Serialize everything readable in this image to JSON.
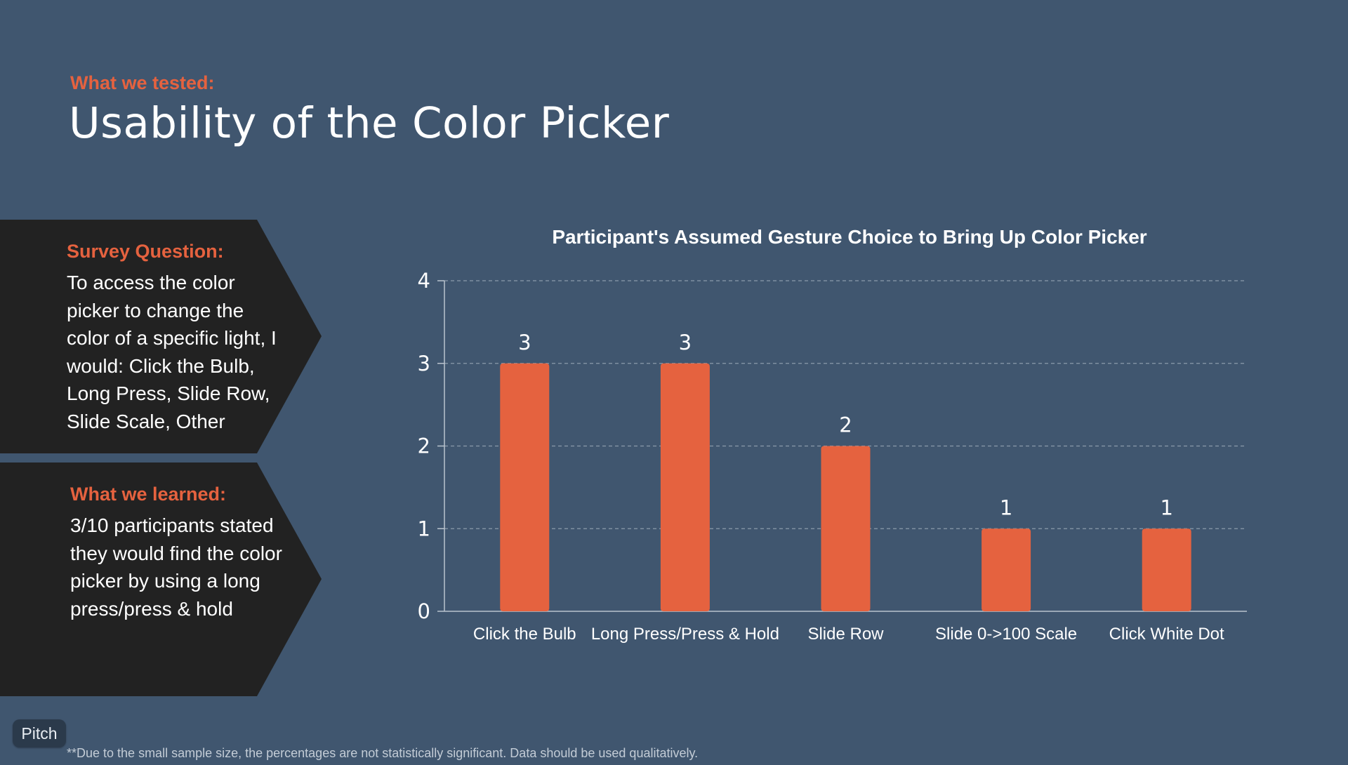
{
  "header": {
    "eyebrow": "What we tested:",
    "title": "Usability of the Color Picker"
  },
  "survey_panel": {
    "heading": "Survey Question:",
    "body": "To access the color picker to change the color of a specific light, I would: Click the Bulb, Long Press, Slide Row, Slide Scale, Other"
  },
  "learned_panel": {
    "heading": "What we learned:",
    "body": "3/10 participants stated they would find the color picker by using a long press/press & hold"
  },
  "chart_data": {
    "type": "bar",
    "title": "Participant's Assumed Gesture Choice to Bring Up Color Picker",
    "categories": [
      "Click the Bulb",
      "Long Press/Press & Hold",
      "Slide Row",
      "Slide 0->100 Scale",
      "Click White Dot"
    ],
    "values": [
      3,
      3,
      2,
      1,
      1
    ],
    "ylim": [
      0,
      4
    ],
    "yticks": [
      "0",
      "1",
      "2",
      "3",
      "4"
    ],
    "data_labels": [
      "3",
      "3",
      "2",
      "1",
      "1"
    ],
    "grid": true,
    "bar_color": "#e5623f"
  },
  "branding": {
    "badge": "Pitch"
  },
  "footnote": "**Due to the small sample size, the percentages are not statistically significant. Data should be used qualitatively."
}
